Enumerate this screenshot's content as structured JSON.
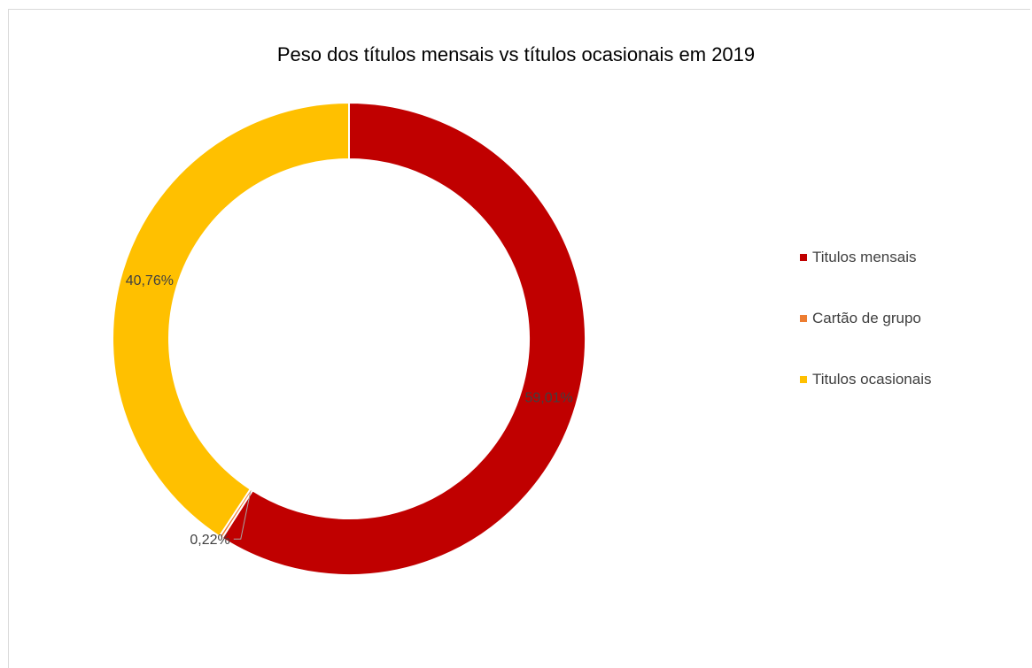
{
  "chart_data": {
    "type": "pie",
    "title": "Peso dos títulos mensais vs títulos ocasionais em 2019",
    "series": [
      {
        "name": "Titulos mensais",
        "value": 59.01,
        "label": "59,01%",
        "color": "#c00000"
      },
      {
        "name": "Cartão de grupo",
        "value": 0.22,
        "label": "0,22%",
        "color": "#ed7d31"
      },
      {
        "name": "Titulos ocasionais",
        "value": 40.76,
        "label": "40,76%",
        "color": "#ffc000"
      }
    ],
    "legend_position": "right",
    "donut": true
  }
}
